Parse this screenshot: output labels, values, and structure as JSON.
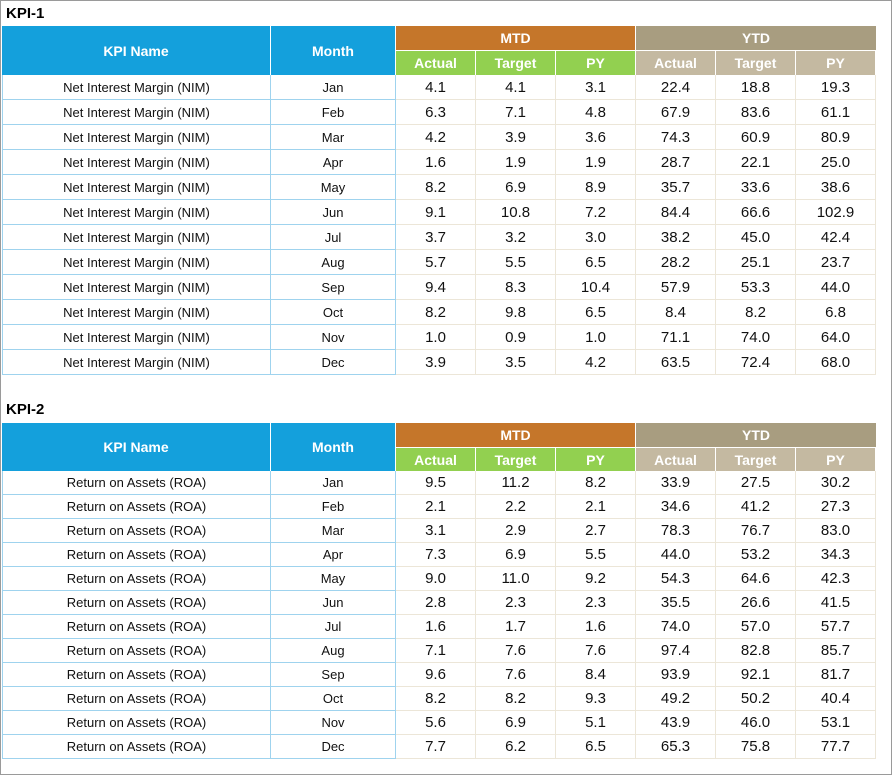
{
  "tables": [
    {
      "label": "KPI-1",
      "headers": {
        "kpi_name": "KPI Name",
        "month": "Month",
        "mtd": "MTD",
        "ytd": "YTD",
        "sub": [
          "Actual",
          "Target",
          "PY",
          "Actual",
          "Target",
          "PY"
        ]
      },
      "rows": [
        [
          "Net Interest Margin (NIM)",
          "Jan",
          "4.1",
          "4.1",
          "3.1",
          "22.4",
          "18.8",
          "19.3"
        ],
        [
          "Net Interest Margin (NIM)",
          "Feb",
          "6.3",
          "7.1",
          "4.8",
          "67.9",
          "83.6",
          "61.1"
        ],
        [
          "Net Interest Margin (NIM)",
          "Mar",
          "4.2",
          "3.9",
          "3.6",
          "74.3",
          "60.9",
          "80.9"
        ],
        [
          "Net Interest Margin (NIM)",
          "Apr",
          "1.6",
          "1.9",
          "1.9",
          "28.7",
          "22.1",
          "25.0"
        ],
        [
          "Net Interest Margin (NIM)",
          "May",
          "8.2",
          "6.9",
          "8.9",
          "35.7",
          "33.6",
          "38.6"
        ],
        [
          "Net Interest Margin (NIM)",
          "Jun",
          "9.1",
          "10.8",
          "7.2",
          "84.4",
          "66.6",
          "102.9"
        ],
        [
          "Net Interest Margin (NIM)",
          "Jul",
          "3.7",
          "3.2",
          "3.0",
          "38.2",
          "45.0",
          "42.4"
        ],
        [
          "Net Interest Margin (NIM)",
          "Aug",
          "5.7",
          "5.5",
          "6.5",
          "28.2",
          "25.1",
          "23.7"
        ],
        [
          "Net Interest Margin (NIM)",
          "Sep",
          "9.4",
          "8.3",
          "10.4",
          "57.9",
          "53.3",
          "44.0"
        ],
        [
          "Net Interest Margin (NIM)",
          "Oct",
          "8.2",
          "9.8",
          "6.5",
          "8.4",
          "8.2",
          "6.8"
        ],
        [
          "Net Interest Margin (NIM)",
          "Nov",
          "1.0",
          "0.9",
          "1.0",
          "71.1",
          "74.0",
          "64.0"
        ],
        [
          "Net Interest Margin (NIM)",
          "Dec",
          "3.9",
          "3.5",
          "4.2",
          "63.5",
          "72.4",
          "68.0"
        ]
      ]
    },
    {
      "label": "KPI-2",
      "headers": {
        "kpi_name": "KPI Name",
        "month": "Month",
        "mtd": "MTD",
        "ytd": "YTD",
        "sub": [
          "Actual",
          "Target",
          "PY",
          "Actual",
          "Target",
          "PY"
        ]
      },
      "rows": [
        [
          "Return on Assets (ROA)",
          "Jan",
          "9.5",
          "11.2",
          "8.2",
          "33.9",
          "27.5",
          "30.2"
        ],
        [
          "Return on Assets (ROA)",
          "Feb",
          "2.1",
          "2.2",
          "2.1",
          "34.6",
          "41.2",
          "27.3"
        ],
        [
          "Return on Assets (ROA)",
          "Mar",
          "3.1",
          "2.9",
          "2.7",
          "78.3",
          "76.7",
          "83.0"
        ],
        [
          "Return on Assets (ROA)",
          "Apr",
          "7.3",
          "6.9",
          "5.5",
          "44.0",
          "53.2",
          "34.3"
        ],
        [
          "Return on Assets (ROA)",
          "May",
          "9.0",
          "11.0",
          "9.2",
          "54.3",
          "64.6",
          "42.3"
        ],
        [
          "Return on Assets (ROA)",
          "Jun",
          "2.8",
          "2.3",
          "2.3",
          "35.5",
          "26.6",
          "41.5"
        ],
        [
          "Return on Assets (ROA)",
          "Jul",
          "1.6",
          "1.7",
          "1.6",
          "74.0",
          "57.0",
          "57.7"
        ],
        [
          "Return on Assets (ROA)",
          "Aug",
          "7.1",
          "7.6",
          "7.6",
          "97.4",
          "82.8",
          "85.7"
        ],
        [
          "Return on Assets (ROA)",
          "Sep",
          "9.6",
          "7.6",
          "8.4",
          "93.9",
          "92.1",
          "81.7"
        ],
        [
          "Return on Assets (ROA)",
          "Oct",
          "8.2",
          "8.2",
          "9.3",
          "49.2",
          "50.2",
          "40.4"
        ],
        [
          "Return on Assets (ROA)",
          "Nov",
          "5.6",
          "6.9",
          "5.1",
          "43.9",
          "46.0",
          "53.1"
        ],
        [
          "Return on Assets (ROA)",
          "Dec",
          "7.7",
          "6.2",
          "6.5",
          "65.3",
          "75.8",
          "77.7"
        ]
      ]
    }
  ]
}
